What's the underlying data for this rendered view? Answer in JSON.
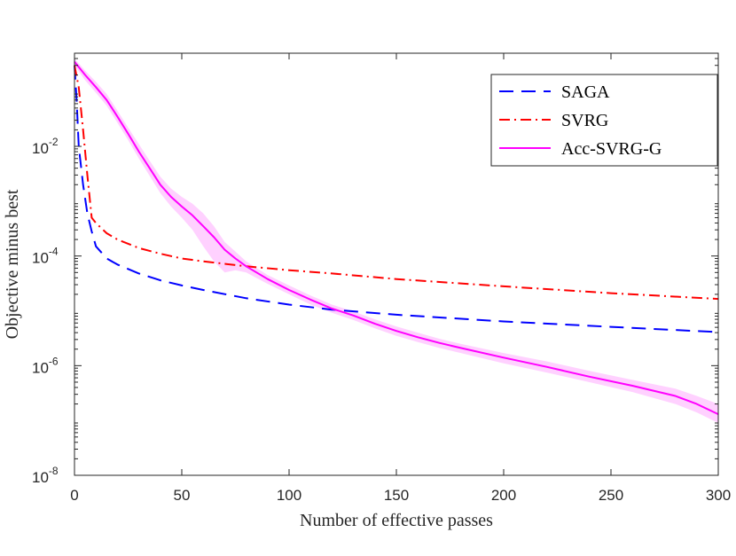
{
  "chart_data": {
    "type": "line",
    "title": "",
    "xlabel": "Number of effective passes",
    "ylabel": "Objective minus best",
    "xlim": [
      0,
      300
    ],
    "ylog_range": [
      1e-08,
      0.5
    ],
    "x_ticks": [
      0,
      50,
      100,
      150,
      200,
      250,
      300
    ],
    "y_ticks": [
      {
        "exp": -8,
        "value": 1e-08,
        "base": "10",
        "sup": "-8"
      },
      {
        "exp": -6,
        "value": 1e-06,
        "base": "10",
        "sup": "-6"
      },
      {
        "exp": -4,
        "value": 0.0001,
        "base": "10",
        "sup": "-4"
      },
      {
        "exp": -2,
        "value": 0.01,
        "base": "10",
        "sup": "-2"
      }
    ],
    "legend_position": "top-right",
    "series": [
      {
        "name": "SAGA",
        "color": "#0000ff",
        "dash": "long-dash",
        "x": [
          0,
          1,
          2,
          4,
          6,
          8,
          10,
          15,
          20,
          30,
          40,
          50,
          60,
          80,
          100,
          120,
          150,
          200,
          250,
          300
        ],
        "y": [
          0.3,
          0.07,
          0.01,
          0.002,
          0.0006,
          0.00028,
          0.00015,
          9e-05,
          7e-05,
          4.8e-05,
          3.6e-05,
          2.9e-05,
          2.4e-05,
          1.7e-05,
          1.3e-05,
          1.05e-05,
          8.5e-06,
          6.4e-06,
          5.1e-06,
          4.1e-06
        ]
      },
      {
        "name": "SVRG",
        "color": "#ff0000",
        "dash": "dash-dot",
        "x": [
          0,
          2,
          4,
          6,
          8,
          10,
          15,
          20,
          30,
          40,
          50,
          60,
          80,
          100,
          120,
          150,
          200,
          250,
          300
        ],
        "y": [
          0.3,
          0.12,
          0.02,
          0.003,
          0.0005,
          0.0004,
          0.00026,
          0.0002,
          0.00014,
          0.00011,
          9e-05,
          8e-05,
          6.5e-05,
          5.5e-05,
          4.8e-05,
          3.8e-05,
          2.8e-05,
          2.1e-05,
          1.65e-05
        ]
      },
      {
        "name": "Acc-SVRG-G",
        "color": "#ff00ff",
        "dash": "solid",
        "x": [
          0,
          5,
          10,
          15,
          20,
          25,
          30,
          35,
          40,
          45,
          50,
          55,
          60,
          65,
          70,
          75,
          80,
          90,
          100,
          110,
          120,
          130,
          140,
          150,
          160,
          170,
          180,
          200,
          220,
          240,
          260,
          280,
          290,
          300
        ],
        "y": [
          0.35,
          0.2,
          0.12,
          0.07,
          0.035,
          0.017,
          0.008,
          0.004,
          0.002,
          0.0012,
          0.0008,
          0.00055,
          0.00035,
          0.00022,
          0.00013,
          9e-05,
          6.5e-05,
          3.8e-05,
          2.4e-05,
          1.6e-05,
          1.1e-05,
          8.2e-06,
          5.8e-06,
          4.3e-06,
          3.3e-06,
          2.6e-06,
          2.1e-06,
          1.4e-06,
          9.5e-07,
          6.3e-07,
          4.3e-07,
          2.8e-07,
          2e-07,
          1.3e-07
        ]
      }
    ],
    "shaded_band": {
      "series": "Acc-SVRG-G",
      "color": "#ff00ff",
      "x": [
        0,
        5,
        10,
        15,
        20,
        25,
        30,
        35,
        40,
        45,
        50,
        55,
        60,
        65,
        70,
        75,
        80,
        90,
        100,
        110,
        120,
        130,
        140,
        150,
        160,
        170,
        180,
        200,
        220,
        240,
        260,
        280,
        290,
        300
      ],
      "upper": [
        0.4,
        0.24,
        0.15,
        0.09,
        0.045,
        0.022,
        0.011,
        0.0055,
        0.0028,
        0.0017,
        0.0012,
        0.0009,
        0.0006,
        0.00035,
        0.00018,
        0.00012,
        8e-05,
        4.5e-05,
        2.9e-05,
        1.9e-05,
        1.3e-05,
        9.8e-06,
        7e-06,
        5.2e-06,
        4e-06,
        3.1e-06,
        2.5e-06,
        1.7e-06,
        1.2e-06,
        8e-07,
        5.5e-07,
        3.8e-07,
        2.8e-07,
        2e-07
      ],
      "lower": [
        0.3,
        0.16,
        0.095,
        0.055,
        0.027,
        0.013,
        0.006,
        0.0029,
        0.0014,
        0.0008,
        0.0005,
        0.0003,
        0.00015,
        8e-05,
        5e-05,
        5.5e-05,
        5e-05,
        3.1e-05,
        2e-05,
        1.3e-05,
        9.2e-06,
        6.8e-06,
        4.8e-06,
        3.5e-06,
        2.7e-06,
        2.1e-06,
        1.7e-06,
        1.1e-06,
        7.5e-07,
        5e-07,
        3.3e-07,
        2e-07,
        1.4e-07,
        9e-08
      ]
    }
  }
}
